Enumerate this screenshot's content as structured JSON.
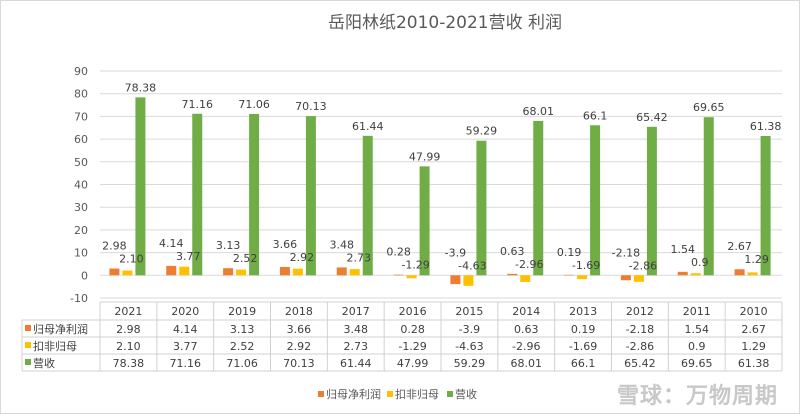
{
  "chart_data": {
    "type": "bar",
    "title": "岳阳林纸2010-2021营收 利润",
    "categories": [
      "2021",
      "2020",
      "2019",
      "2018",
      "2017",
      "2016",
      "2015",
      "2014",
      "2013",
      "2012",
      "2011",
      "2010"
    ],
    "series": [
      {
        "name": "归母净利润",
        "color": "#ed7d31",
        "labels": [
          "2.98",
          "4.14",
          "3.13",
          "3.66",
          "3.48",
          "0.28",
          "-3.9",
          "0.63",
          "0.19",
          "-2.18",
          "1.54",
          "2.67"
        ],
        "values": [
          2.98,
          4.14,
          3.13,
          3.66,
          3.48,
          0.28,
          -3.9,
          0.63,
          0.19,
          -2.18,
          1.54,
          2.67
        ]
      },
      {
        "name": "扣非归母",
        "color": "#ffc000",
        "labels": [
          "2.10",
          "3.77",
          "2.52",
          "2.92",
          "2.73",
          "-1.29",
          "-4.63",
          "-2.96",
          "-1.69",
          "-2.86",
          "0.9",
          "1.29"
        ],
        "values": [
          2.1,
          3.77,
          2.52,
          2.92,
          2.73,
          -1.29,
          -4.63,
          -2.96,
          -1.69,
          -2.86,
          0.9,
          1.29
        ]
      },
      {
        "name": "营收",
        "color": "#70ad47",
        "labels": [
          "78.38",
          "71.16",
          "71.06",
          "70.13",
          "61.44",
          "47.99",
          "59.29",
          "68.01",
          "66.1",
          "65.42",
          "69.65",
          "61.38"
        ],
        "values": [
          78.38,
          71.16,
          71.06,
          70.13,
          61.44,
          47.99,
          59.29,
          68.01,
          66.1,
          65.42,
          69.65,
          61.38
        ]
      }
    ],
    "ylim": [
      -10,
      90
    ],
    "yticks": [
      "-10",
      "0",
      "10",
      "20",
      "30",
      "40",
      "50",
      "60",
      "70",
      "80",
      "90"
    ],
    "grid": true,
    "data_table": true,
    "legend": "bottom"
  },
  "watermark": "雪球：万物周期"
}
